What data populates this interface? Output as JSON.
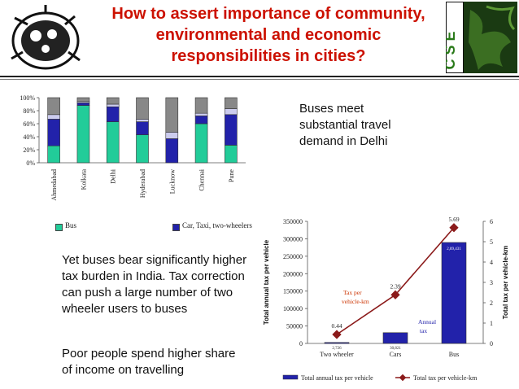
{
  "slide": {
    "title": "How to assert importance of community, environmental and economic responsibilities in cities?",
    "logo_text": "C S E",
    "note_buses": "Buses meet substantial travel demand in Delhi",
    "text_tax": "Yet buses bear significantly higher tax burden in India. Tax correction can push  a large number of two wheeler users to buses",
    "text_poor": "Poor people spend higher share of income on travelling",
    "colors": {
      "title": "#cc1100",
      "bus": "#22cc99",
      "car": "#2222aa",
      "tax_line": "#8b1a1a"
    }
  },
  "chart_data": [
    {
      "type": "bar",
      "stacked": true,
      "categories": [
        "Ahmedabad",
        "Kolkata",
        "Delhi",
        "Hyderabad",
        "Lucknow",
        "Chennai",
        "Pune"
      ],
      "ylim": [
        0,
        100
      ],
      "yticks": [
        "0%",
        "20%",
        "40%",
        "60%",
        "80%",
        "100%"
      ],
      "series": [
        {
          "name": "Bus",
          "color": "#22cc99",
          "values": [
            26,
            88,
            63,
            43,
            0,
            60,
            27
          ]
        },
        {
          "name": "Car, Taxi, two-wheelers",
          "color": "#2222aa",
          "values": [
            41,
            4,
            23,
            20,
            37,
            12,
            47
          ]
        },
        {
          "name": "",
          "color": "#ccccee",
          "values": [
            7,
            2,
            4,
            4,
            10,
            4,
            9
          ]
        },
        {
          "name": "",
          "color": "#888888",
          "values": [
            26,
            6,
            10,
            33,
            53,
            24,
            17
          ]
        }
      ],
      "legend": [
        "Bus",
        "Car, Taxi, two-wheelers"
      ]
    },
    {
      "type": "bar+line",
      "categories": [
        "Two wheeler",
        "Cars",
        "Bus"
      ],
      "ylabel": "Total annual tax per vehicle",
      "y2label": "Total tax per vehicle-km",
      "ylim": [
        0,
        350000
      ],
      "y2lim": [
        0,
        6
      ],
      "yticks": [
        "0",
        "50000",
        "100000",
        "150000",
        "200000",
        "250000",
        "300000",
        "350000"
      ],
      "y2ticks": [
        "0",
        "1",
        "2",
        "3",
        "4",
        "5",
        "6"
      ],
      "bars": {
        "name": "Total annual tax per vehicle",
        "values": [
          2726,
          30821,
          289431
        ],
        "labels": [
          "2,726",
          "30,821",
          "2,89,431"
        ]
      },
      "line": {
        "name": "Total tax per vehicle-km",
        "values": [
          0.44,
          2.39,
          5.69
        ],
        "labels": [
          "0.44",
          "2.39",
          "5.69"
        ]
      },
      "annotations": [
        "Tax per vehicle-km",
        "Annual tax"
      ]
    }
  ]
}
